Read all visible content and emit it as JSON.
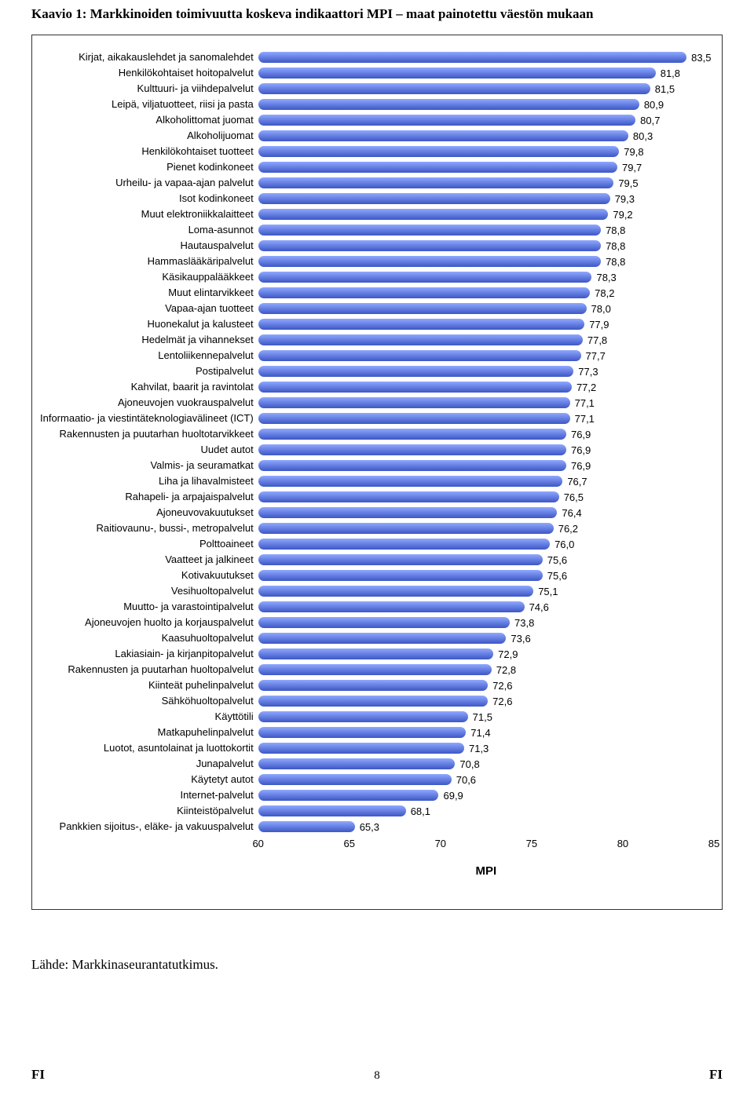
{
  "page": {
    "title": "Kaavio 1: Markkinoiden toimivuutta koskeva indikaattori MPI – maat painotettu väestön mukaan",
    "source": "Lähde: Markkinaseurantatutkimus.",
    "page_number": "8",
    "footer_left": "FI",
    "footer_right": "FI"
  },
  "chart": {
    "type": "bar",
    "axis_label": "MPI",
    "xmin": 60,
    "xmax": 85,
    "xtick_step": 5,
    "bar_gradient_top": "#8fa8ff",
    "bar_gradient_bottom": "#3d57c5",
    "background_color": "#ffffff",
    "border_color": "#333333",
    "label_fontsize": 13,
    "value_fontsize": 13,
    "axis_fontsize": 13,
    "axis_title_fontsize": 15,
    "items": [
      {
        "label": "Kirjat, aikakauslehdet ja sanomalehdet",
        "value": 83.5,
        "display": "83,5"
      },
      {
        "label": "Henkilökohtaiset hoitopalvelut",
        "value": 81.8,
        "display": "81,8"
      },
      {
        "label": "Kulttuuri- ja viihdepalvelut",
        "value": 81.5,
        "display": "81,5"
      },
      {
        "label": "Leipä, viljatuotteet, riisi ja pasta",
        "value": 80.9,
        "display": "80,9"
      },
      {
        "label": "Alkoholittomat juomat",
        "value": 80.7,
        "display": "80,7"
      },
      {
        "label": "Alkoholijuomat",
        "value": 80.3,
        "display": "80,3"
      },
      {
        "label": "Henkilökohtaiset tuotteet",
        "value": 79.8,
        "display": "79,8"
      },
      {
        "label": "Pienet kodinkoneet",
        "value": 79.7,
        "display": "79,7"
      },
      {
        "label": "Urheilu- ja vapaa-ajan palvelut",
        "value": 79.5,
        "display": "79,5"
      },
      {
        "label": "Isot kodinkoneet",
        "value": 79.3,
        "display": "79,3"
      },
      {
        "label": "Muut elektroniikkalaitteet",
        "value": 79.2,
        "display": "79,2"
      },
      {
        "label": "Loma-asunnot",
        "value": 78.8,
        "display": "78,8"
      },
      {
        "label": "Hautauspalvelut",
        "value": 78.8,
        "display": "78,8"
      },
      {
        "label": "Hammaslääkäripalvelut",
        "value": 78.8,
        "display": "78,8"
      },
      {
        "label": "Käsikauppalääkkeet",
        "value": 78.3,
        "display": "78,3"
      },
      {
        "label": "Muut elintarvikkeet",
        "value": 78.2,
        "display": "78,2"
      },
      {
        "label": "Vapaa-ajan tuotteet",
        "value": 78.0,
        "display": "78,0"
      },
      {
        "label": "Huonekalut ja kalusteet",
        "value": 77.9,
        "display": "77,9"
      },
      {
        "label": "Hedelmät ja vihannekset",
        "value": 77.8,
        "display": "77,8"
      },
      {
        "label": "Lentoliikennepalvelut",
        "value": 77.7,
        "display": "77,7"
      },
      {
        "label": "Postipalvelut",
        "value": 77.3,
        "display": "77,3"
      },
      {
        "label": "Kahvilat, baarit ja ravintolat",
        "value": 77.2,
        "display": "77,2"
      },
      {
        "label": "Ajoneuvojen vuokrauspalvelut",
        "value": 77.1,
        "display": "77,1"
      },
      {
        "label": "Informaatio- ja viestintäteknologiavälineet (ICT)",
        "value": 77.1,
        "display": "77,1"
      },
      {
        "label": "Rakennusten ja puutarhan huoltotarvikkeet",
        "value": 76.9,
        "display": "76,9"
      },
      {
        "label": "Uudet autot",
        "value": 76.9,
        "display": "76,9"
      },
      {
        "label": "Valmis- ja seuramatkat",
        "value": 76.9,
        "display": "76,9"
      },
      {
        "label": "Liha ja lihavalmisteet",
        "value": 76.7,
        "display": "76,7"
      },
      {
        "label": "Rahapeli- ja arpajaispalvelut",
        "value": 76.5,
        "display": "76,5"
      },
      {
        "label": "Ajoneuvovakuutukset",
        "value": 76.4,
        "display": "76,4"
      },
      {
        "label": "Raitiovaunu-, bussi-, metropalvelut",
        "value": 76.2,
        "display": "76,2"
      },
      {
        "label": "Polttoaineet",
        "value": 76.0,
        "display": "76,0"
      },
      {
        "label": "Vaatteet ja jalkineet",
        "value": 75.6,
        "display": "75,6"
      },
      {
        "label": "Kotivakuutukset",
        "value": 75.6,
        "display": "75,6"
      },
      {
        "label": "Vesihuoltopalvelut",
        "value": 75.1,
        "display": "75,1"
      },
      {
        "label": "Muutto- ja varastointipalvelut",
        "value": 74.6,
        "display": "74,6"
      },
      {
        "label": "Ajoneuvojen huolto ja korjauspalvelut",
        "value": 73.8,
        "display": "73,8"
      },
      {
        "label": "Kaasuhuoltopalvelut",
        "value": 73.6,
        "display": "73,6"
      },
      {
        "label": "Lakiasiain- ja kirjanpitopalvelut",
        "value": 72.9,
        "display": "72,9"
      },
      {
        "label": "Rakennusten ja puutarhan huoltopalvelut",
        "value": 72.8,
        "display": "72,8"
      },
      {
        "label": "Kiinteät puhelinpalvelut",
        "value": 72.6,
        "display": "72,6"
      },
      {
        "label": "Sähköhuoltopalvelut",
        "value": 72.6,
        "display": "72,6"
      },
      {
        "label": "Käyttötili",
        "value": 71.5,
        "display": "71,5"
      },
      {
        "label": "Matkapuhelinpalvelut",
        "value": 71.4,
        "display": "71,4"
      },
      {
        "label": "Luotot, asuntolainat ja luottokortit",
        "value": 71.3,
        "display": "71,3"
      },
      {
        "label": "Junapalvelut",
        "value": 70.8,
        "display": "70,8"
      },
      {
        "label": "Käytetyt autot",
        "value": 70.6,
        "display": "70,6"
      },
      {
        "label": "Internet-palvelut",
        "value": 69.9,
        "display": "69,9"
      },
      {
        "label": "Kiinteistöpalvelut",
        "value": 68.1,
        "display": "68,1"
      },
      {
        "label": "Pankkien sijoitus-, eläke- ja vakuuspalvelut",
        "value": 65.3,
        "display": "65,3"
      }
    ]
  }
}
